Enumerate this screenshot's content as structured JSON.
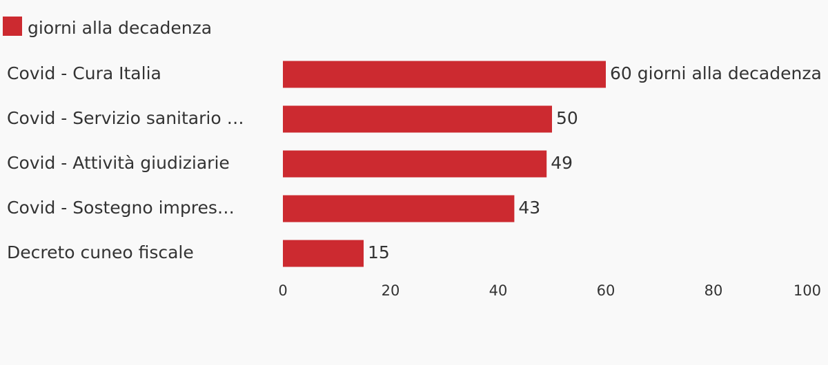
{
  "chart_data": {
    "type": "bar",
    "orientation": "horizontal",
    "categories": [
      "Covid - Cura Italia",
      "Covid - Servizio sanitario …",
      "Covid - Attività giudiziarie",
      "Covid - Sostegno impres…",
      "Decreto cuneo fiscale"
    ],
    "series": [
      {
        "name": "giorni alla decadenza",
        "color": "#cc2a30",
        "values": [
          60,
          50,
          49,
          43,
          15
        ],
        "value_labels": [
          "60 giorni alla decadenza",
          "50",
          "49",
          "43",
          "15"
        ]
      }
    ],
    "xlim": [
      0,
      100
    ],
    "xticks": [
      0,
      20,
      40,
      60,
      80,
      100
    ],
    "legend": "top-left"
  }
}
